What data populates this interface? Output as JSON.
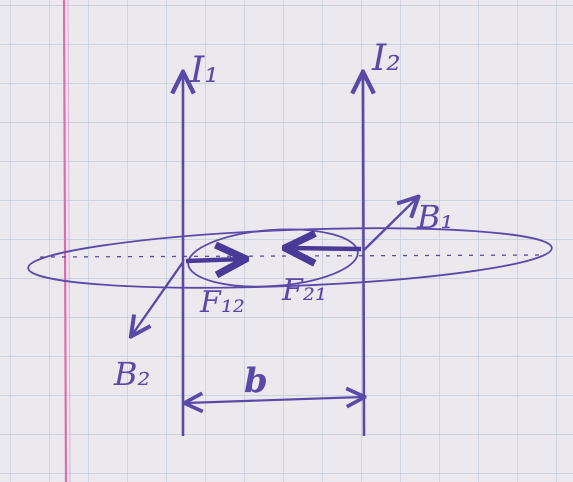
{
  "paper": {
    "grid_color": "#b9c6d8",
    "margin_line_color": "#d86fb0",
    "background": "#ece9ee"
  },
  "ink_color": "#5a4aa8",
  "labels": {
    "current_1": "I₁",
    "current_2": "I₂",
    "field_1": "B₁",
    "field_2": "B₂",
    "force_12": "F₁₂",
    "force_21": "F₂₁",
    "distance": "b"
  }
}
